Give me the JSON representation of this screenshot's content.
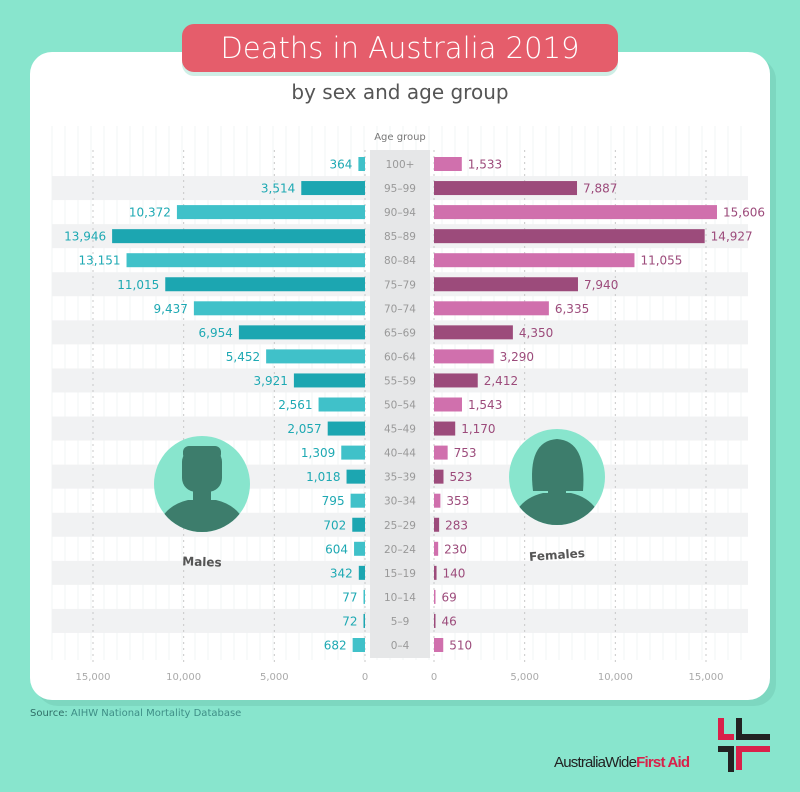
{
  "title": "Deaths in Australia 2019",
  "subtitle": "by sex and age group",
  "chart_data": {
    "type": "bar",
    "orientation": "horizontal-butterfly",
    "category_label": "Age group",
    "categories": [
      "100+",
      "95–99",
      "90–94",
      "85–89",
      "80–84",
      "75–79",
      "70–74",
      "65–69",
      "60–64",
      "55–59",
      "50–54",
      "45–49",
      "40–44",
      "35–39",
      "30–34",
      "25–29",
      "20–24",
      "15–19",
      "10–14",
      "5–9",
      "0–4"
    ],
    "series": [
      {
        "name": "Males",
        "values": [
          364,
          3514,
          10372,
          13946,
          13151,
          11015,
          9437,
          6954,
          5452,
          3921,
          2561,
          2057,
          1309,
          1018,
          795,
          702,
          604,
          342,
          77,
          72,
          682
        ],
        "labels": [
          "364",
          "3,514",
          "10,372",
          "13,946",
          "13,151",
          "11,015",
          "9,437",
          "6,954",
          "5,452",
          "3,921",
          "2,561",
          "2,057",
          "1,309",
          "1,018",
          "795",
          "702",
          "604",
          "342",
          "77",
          "72",
          "682"
        ],
        "colors": [
          "#40c1c9",
          "#1ca6b1"
        ]
      },
      {
        "name": "Females",
        "values": [
          1533,
          7887,
          15606,
          14927,
          11055,
          7940,
          6335,
          4350,
          3290,
          2412,
          1543,
          1170,
          753,
          523,
          353,
          283,
          230,
          140,
          69,
          46,
          510
        ],
        "labels": [
          "1,533",
          "7,887",
          "15,606",
          "14,927",
          "11,055",
          "7,940",
          "6,335",
          "4,350",
          "3,290",
          "2,412",
          "1,543",
          "1,170",
          "753",
          "523",
          "353",
          "283",
          "230",
          "140",
          "69",
          "46",
          "510"
        ],
        "colors": [
          "#d070ad",
          "#9c4b7b"
        ]
      }
    ],
    "xlim": [
      0,
      15000
    ],
    "xticks": [
      15000,
      10000,
      5000,
      0
    ],
    "xtick_labels": [
      "15,000",
      "10,000",
      "5,000",
      "0"
    ],
    "grid": true
  },
  "source_label": "Source:",
  "source_text": "AIHW National Mortality Database",
  "logo": {
    "part1": "AustraliaWide",
    "part2": "First Aid"
  },
  "colors": {
    "background": "#88e5cd",
    "title_bg": "#e55d6b",
    "avatar_bg": "#88e5cd",
    "avatar_fg": "#3d7d6c"
  }
}
